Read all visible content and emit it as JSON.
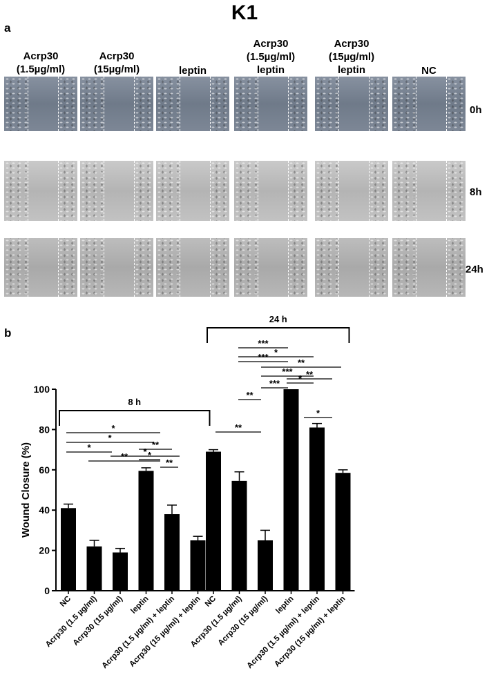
{
  "figure": {
    "title": "K1",
    "panel_a_label": "a",
    "panel_b_label": "b",
    "columns": [
      {
        "line1": "Acrp30",
        "line2": "(1.5µg/ml)",
        "line3": ""
      },
      {
        "line1": "Acrp30",
        "line2": "(15µg/ml)",
        "line3": ""
      },
      {
        "line1": "leptin",
        "line2": "",
        "line3": ""
      },
      {
        "line1": "Acrp30",
        "line2": "(1.5µg/ml)",
        "line3": "leptin"
      },
      {
        "line1": "Acrp30",
        "line2": "(15µg/ml)",
        "line3": "leptin"
      },
      {
        "line1": "NC",
        "line2": "",
        "line3": ""
      }
    ],
    "rows": [
      "0h",
      "8h",
      "24h"
    ],
    "tile_colors": {
      "0h": "#7b8594",
      "8h": "#bebebe",
      "24h": "#b2b2b2"
    }
  },
  "chart_data": {
    "type": "bar",
    "ylabel": "Wound Closure (%)",
    "ylim": [
      0,
      100
    ],
    "yticks": [
      0,
      20,
      40,
      60,
      80,
      100
    ],
    "bar_color": "#000000",
    "groups": [
      {
        "label": "8 h",
        "categories": [
          "NC",
          "Acrp30 (1.5 µg/ml)",
          "Acrp30 (15 µg/ml)",
          "leptin",
          "Acrp30 (1.5 µg/ml) + leptin",
          "Acrp30 (15 µg/ml) + leptin"
        ],
        "values": [
          41,
          22,
          19,
          59.5,
          38,
          25
        ],
        "errors": [
          2,
          3,
          2,
          1.5,
          4.5,
          2
        ],
        "significance": [
          {
            "from": 0,
            "to": 1,
            "label": "*"
          },
          {
            "from": 0,
            "to": 2,
            "label": "*"
          },
          {
            "from": 0,
            "to": 3,
            "label": "*"
          },
          {
            "from": 1,
            "to": 3,
            "label": "**"
          },
          {
            "from": 2,
            "to": 4,
            "label": "*"
          },
          {
            "from": 3,
            "to": 4,
            "label": "**"
          },
          {
            "from": 3,
            "to": 4,
            "label": "*"
          },
          {
            "from": 4,
            "to": 5,
            "label": "**"
          }
        ]
      },
      {
        "label": "24 h",
        "categories": [
          "NC",
          "Acrp30 (1.5 µg/ml)",
          "Acrp30 (15 µg/ml)",
          "leptin",
          "Acrp30 (1.5 µg/ml) + leptin",
          "Acrp30 (15 µg/ml) + leptin"
        ],
        "values": [
          69,
          54.5,
          25,
          100,
          81,
          58.5
        ],
        "errors": [
          1,
          4.5,
          5,
          0,
          2,
          1.5
        ],
        "significance": [
          {
            "from": 0,
            "to": 2,
            "label": "**"
          },
          {
            "from": 1,
            "to": 2,
            "label": "**"
          },
          {
            "from": 4,
            "to": 5,
            "label": "*"
          },
          {
            "from": 0,
            "to": 3,
            "label": "***"
          },
          {
            "from": 1,
            "to": 4,
            "label": "*"
          },
          {
            "from": 1,
            "to": 3,
            "label": "***"
          },
          {
            "from": 2,
            "to": 5,
            "label": "**"
          },
          {
            "from": 2,
            "to": 4,
            "label": "***"
          },
          {
            "from": 3,
            "to": 5,
            "label": "**"
          },
          {
            "from": 2,
            "to": 3,
            "label": "***"
          },
          {
            "from": 3,
            "to": 4,
            "label": "*"
          }
        ]
      }
    ]
  }
}
